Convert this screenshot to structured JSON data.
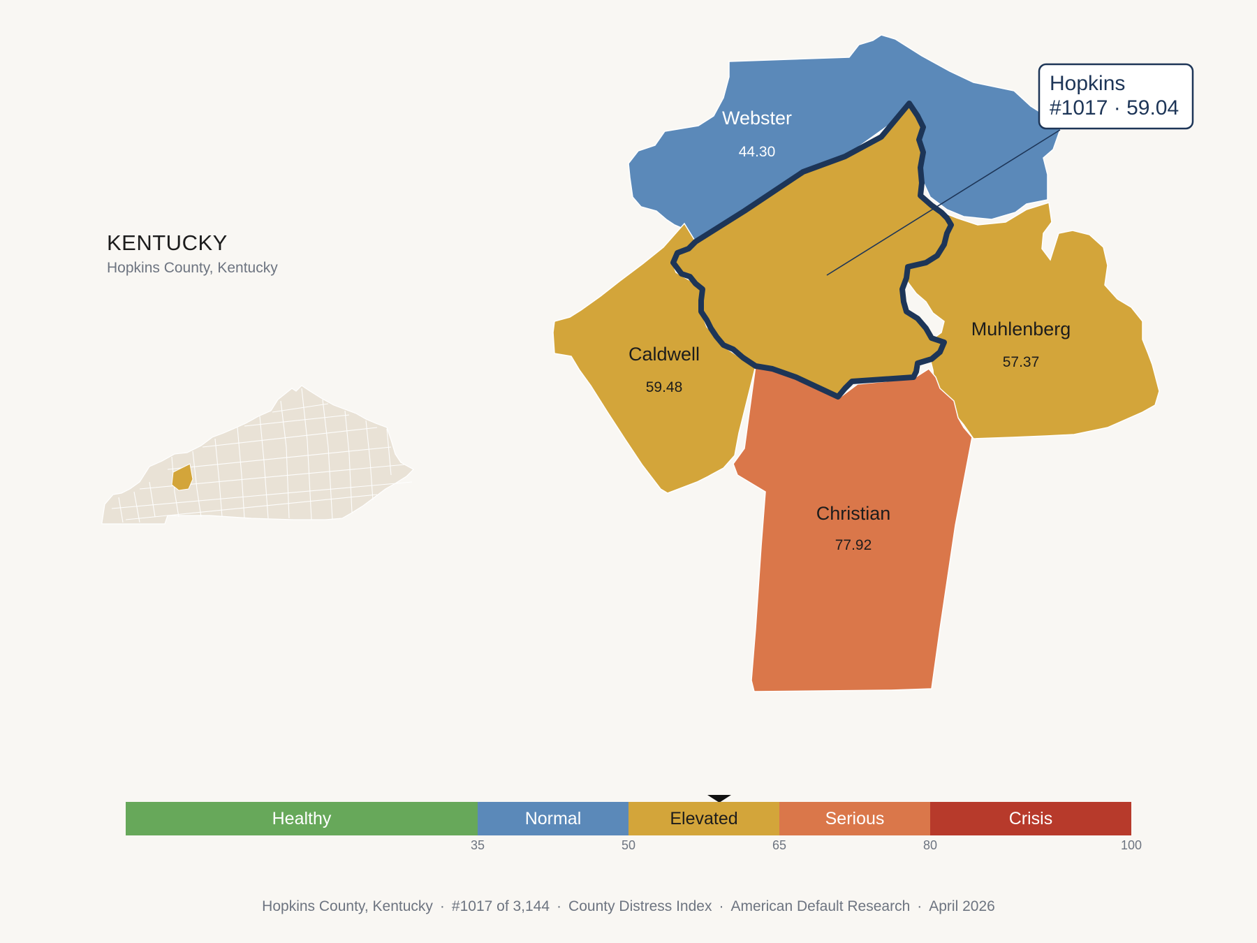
{
  "state": {
    "title": "KENTUCKY",
    "subtitle": "Hopkins County, Kentucky"
  },
  "map": {
    "focus": {
      "name": "Hopkins",
      "callout_line1": "Hopkins",
      "callout_line2": "#1017 · 59.04",
      "value": 59.04,
      "category": "Elevated"
    },
    "neighbors": [
      {
        "name": "Webster",
        "value": "44.30",
        "category": "Normal"
      },
      {
        "name": "Caldwell",
        "value": "59.48",
        "category": "Elevated"
      },
      {
        "name": "Muhlenberg",
        "value": "57.37",
        "category": "Elevated"
      },
      {
        "name": "Christian",
        "value": "77.92",
        "category": "Serious"
      }
    ]
  },
  "scale": {
    "segments": [
      {
        "label": "Healthy",
        "from": 0,
        "to": 35,
        "color": "#67a85a"
      },
      {
        "label": "Normal",
        "from": 35,
        "to": 50,
        "color": "#5b89b9"
      },
      {
        "label": "Elevated",
        "from": 50,
        "to": 65,
        "color": "#d3a53a"
      },
      {
        "label": "Serious",
        "from": 65,
        "to": 80,
        "color": "#da774a"
      },
      {
        "label": "Crisis",
        "from": 80,
        "to": 100,
        "color": "#b73a2b"
      }
    ],
    "ticks": [
      "35",
      "50",
      "65",
      "80",
      "100"
    ],
    "marker_value": 59.04
  },
  "colors": {
    "background": "#f9f7f3",
    "normal": "#5b89b9",
    "elevated": "#d3a53a",
    "serious": "#da774a",
    "outline": "#1d3557",
    "inset_fill": "#e9e2d6"
  },
  "footer": {
    "county": "Hopkins County, Kentucky",
    "rank": "#1017 of 3,144",
    "index": "County Distress Index",
    "source": "American Default Research",
    "date": "April 2026"
  }
}
